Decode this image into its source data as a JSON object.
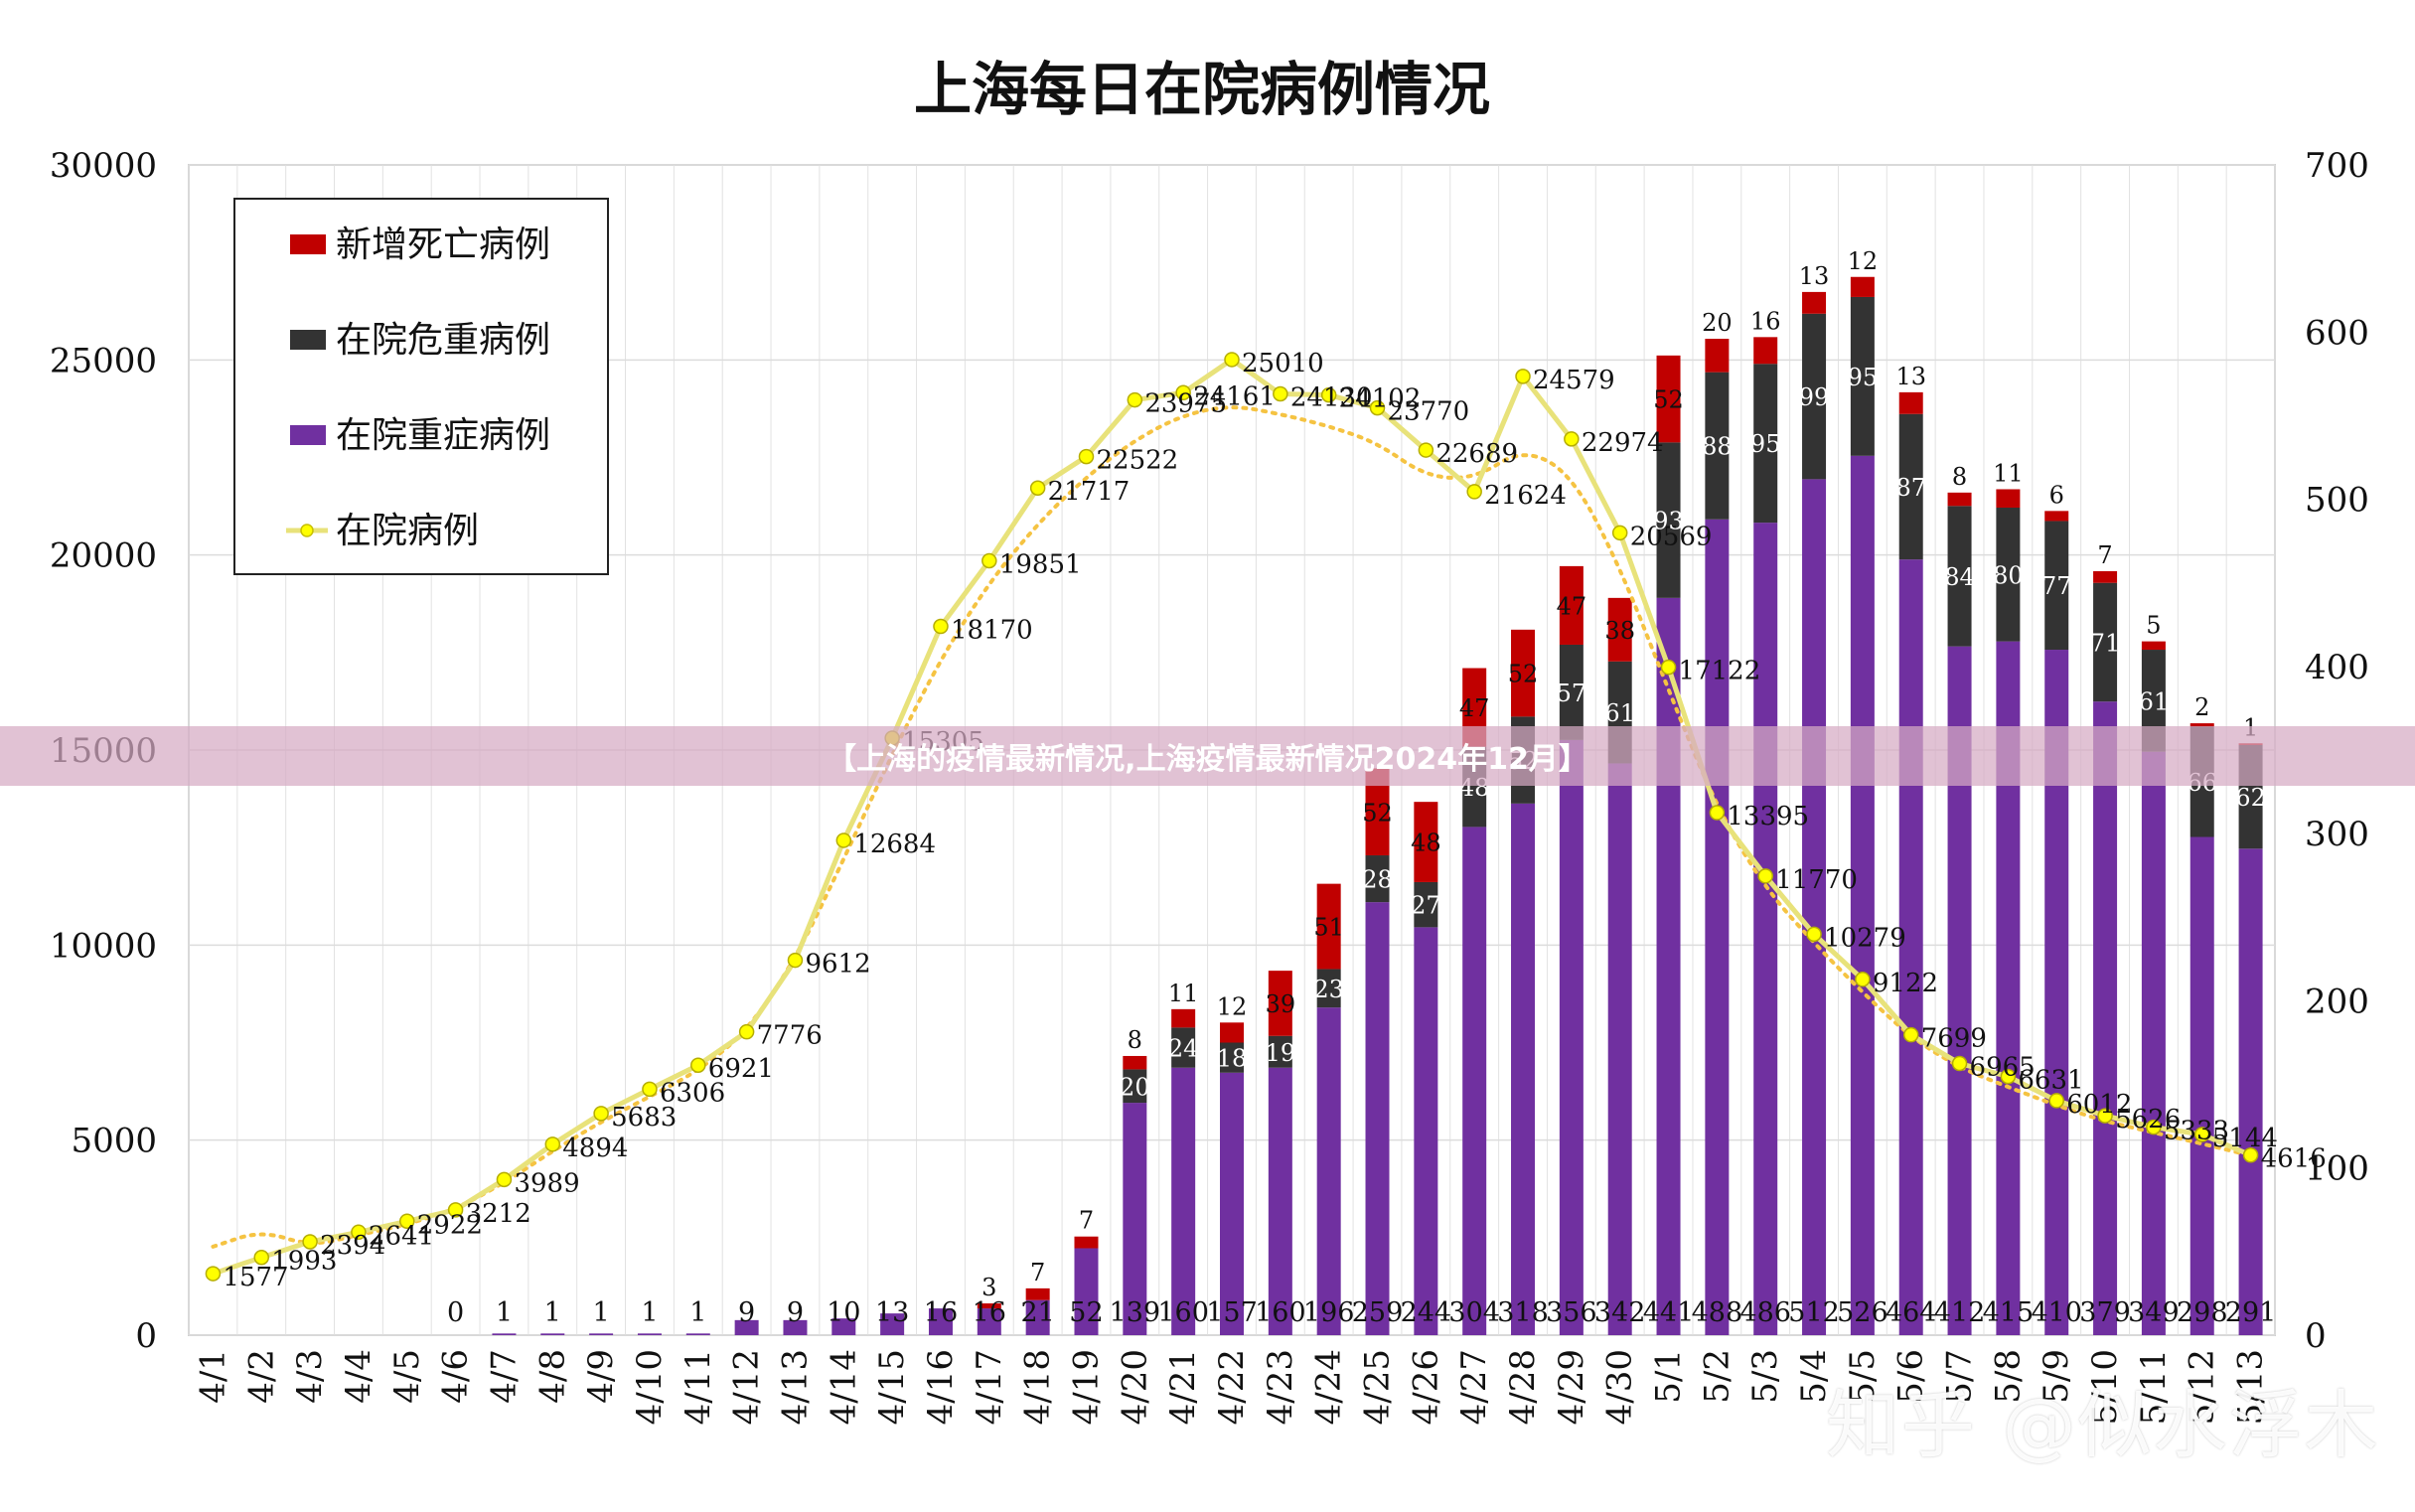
{
  "page": {
    "banner_text": "【上海的疫情最新情况,上海疫情最新情况2024年12月】",
    "watermark": "知乎 @似水浮木"
  },
  "chart_data": {
    "type": "bar",
    "title": "上海每日在院病例情况",
    "dates": [
      "4/1",
      "4/2",
      "4/3",
      "4/4",
      "4/5",
      "4/6",
      "4/7",
      "4/8",
      "4/9",
      "4/10",
      "4/11",
      "4/12",
      "4/13",
      "4/14",
      "4/15",
      "4/16",
      "4/17",
      "4/18",
      "4/19",
      "4/20",
      "4/21",
      "4/22",
      "4/23",
      "4/24",
      "4/25",
      "4/26",
      "4/27",
      "4/28",
      "4/29",
      "4/30",
      "5/1",
      "5/2",
      "5/3",
      "5/4",
      "5/5",
      "5/6",
      "5/7",
      "5/8",
      "5/9",
      "5/10",
      "5/11",
      "5/12",
      "5/13"
    ],
    "left_axis": {
      "min": 0,
      "max": 30000,
      "ticks": [
        0,
        5000,
        10000,
        15000,
        20000,
        25000,
        30000
      ]
    },
    "right_axis": {
      "min": 0,
      "max": 700,
      "ticks": [
        0,
        100,
        200,
        300,
        400,
        500,
        600,
        700
      ]
    },
    "legend": {
      "placement": "top-left",
      "items": [
        {
          "name": "新增死亡病例",
          "color": "#c00000",
          "kind": "bar"
        },
        {
          "name": "在院危重病例",
          "color": "#333333",
          "kind": "bar"
        },
        {
          "name": "在院重症病例",
          "color": "#7030a0",
          "kind": "bar"
        },
        {
          "name": "在院病例",
          "color": "#e8e27a",
          "kind": "line"
        }
      ]
    },
    "hospitalized": [
      1577,
      1993,
      2394,
      2641,
      2922,
      3212,
      3989,
      4894,
      5683,
      6306,
      6921,
      7776,
      9612,
      12684,
      15305,
      18170,
      19851,
      21717,
      22522,
      23975,
      24161,
      25010,
      24130,
      24102,
      23770,
      22689,
      21624,
      24579,
      22974,
      20569,
      17122,
      13395,
      11770,
      10279,
      9122,
      7699,
      6965,
      6631,
      6012,
      5626,
      5333,
      5144,
      4616
    ],
    "hospitalized_labels": [
      "1577",
      "1993",
      "2394",
      "2641",
      "2922",
      "3212",
      "3989",
      "4894",
      "5683",
      "6306",
      "6921",
      "7776",
      "9612",
      "12684",
      "15305",
      "18170",
      "19851",
      "21717",
      "22522",
      "23975",
      "24161",
      "25010",
      "24130",
      "24102",
      "23770",
      "22689",
      "21624",
      "24579",
      "22974",
      "20569",
      "17122",
      "13395",
      "11770",
      "10279",
      "9122",
      "7699",
      "6965",
      "6631",
      "6012",
      "5626",
      "5333",
      "5144",
      "4616"
    ],
    "severe": [
      null,
      null,
      null,
      null,
      null,
      0,
      1,
      1,
      1,
      1,
      1,
      9,
      9,
      10,
      13,
      16,
      16,
      21,
      52,
      139,
      160,
      157,
      160,
      196,
      259,
      244,
      304,
      318,
      356,
      342,
      441,
      488,
      486,
      512,
      526,
      464,
      412,
      415,
      410,
      379,
      349,
      298,
      291
    ],
    "severe_labels": [
      "",
      "",
      "",
      "",
      "",
      "0",
      "1",
      "1",
      "1",
      "1",
      "1",
      "9",
      "9",
      "10",
      "13",
      "16",
      "16",
      "21",
      "52",
      "139",
      "160",
      "157",
      "160",
      "196",
      "259",
      "244",
      "304",
      "318",
      "356",
      "342",
      "441",
      "488",
      "486",
      "512",
      "526",
      "464",
      "412",
      "415",
      "410",
      "379",
      "349",
      "298",
      "291"
    ],
    "critical": [
      0,
      0,
      0,
      0,
      0,
      0,
      0,
      0,
      0,
      0,
      0,
      0,
      0,
      0,
      0,
      0,
      0,
      0,
      0,
      20,
      24,
      18,
      19,
      23,
      28,
      27,
      48,
      52,
      57,
      61,
      93,
      88,
      95,
      99,
      95,
      87,
      84,
      80,
      77,
      71,
      61,
      66,
      62
    ],
    "critical_labels": [
      "",
      "",
      "",
      "",
      "",
      "",
      "",
      "",
      "",
      "",
      "",
      "",
      "",
      "",
      "",
      "",
      "",
      "",
      "",
      "20",
      "24",
      "18",
      "19",
      "23",
      "28",
      "27",
      "48",
      "52",
      "57",
      "61",
      "93",
      "88",
      "95",
      "99",
      "95",
      "87",
      "84",
      "80",
      "77",
      "71",
      "61",
      "66",
      "62"
    ],
    "deaths": [
      0,
      0,
      0,
      0,
      0,
      0,
      0,
      0,
      0,
      0,
      0,
      0,
      0,
      0,
      0,
      0,
      3,
      7,
      7,
      8,
      11,
      12,
      39,
      51,
      52,
      48,
      47,
      52,
      47,
      38,
      52,
      20,
      16,
      13,
      12,
      13,
      8,
      11,
      6,
      7,
      5,
      2,
      1
    ],
    "deaths_labels": [
      "",
      "",
      "",
      "",
      "",
      "",
      "",
      "",
      "",
      "",
      "",
      "",
      "",
      "",
      "",
      "",
      "3",
      "7",
      "7",
      "8",
      "11",
      "12",
      "39",
      "51",
      "52",
      "48",
      "47",
      "52",
      "47",
      "38",
      "52",
      "20",
      "16",
      "13",
      "12",
      "13",
      "8",
      "11",
      "6",
      "7",
      "5",
      "2",
      "1"
    ],
    "trend_line": {
      "style": "dotted",
      "color": "#f5c342"
    },
    "grid": true,
    "colors": {
      "death": "#c00000",
      "critical": "#333333",
      "severe": "#7030a0",
      "line": "#e8e27a",
      "point": "#ffff00",
      "trend": "#f5c342"
    }
  }
}
